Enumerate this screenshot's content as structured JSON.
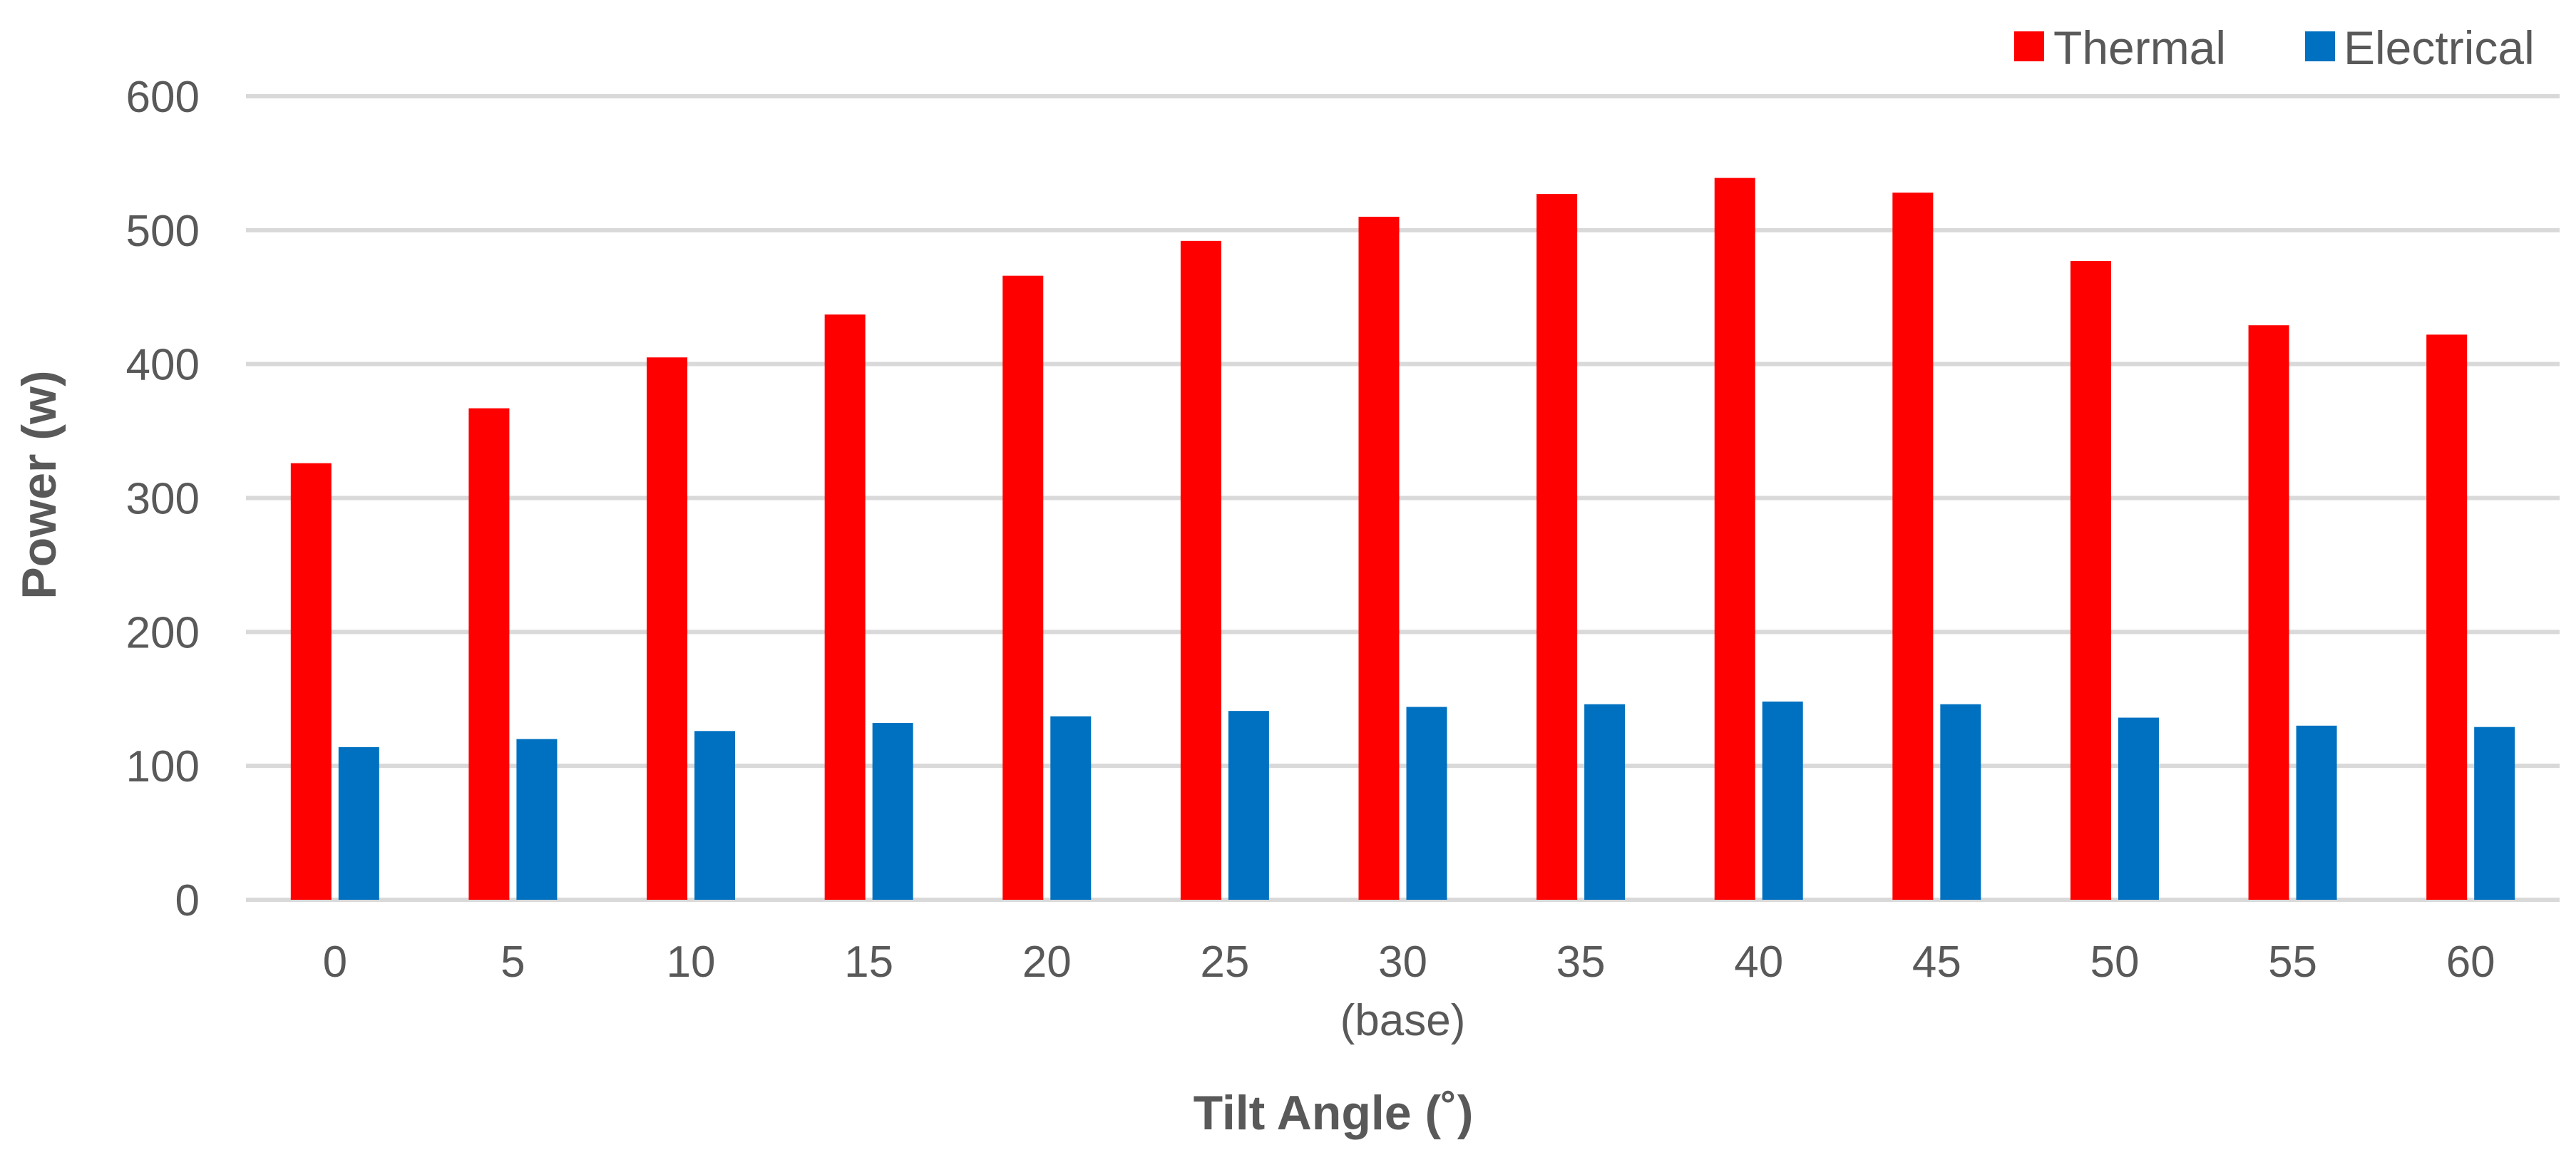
{
  "chart_data": {
    "type": "bar",
    "categories": [
      "0",
      "5",
      "10",
      "15",
      "20",
      "25",
      "30\n(base)",
      "35",
      "40",
      "45",
      "50",
      "55",
      "60"
    ],
    "series": [
      {
        "name": "Thermal",
        "color": "#ff0000",
        "values": [
          326,
          367,
          405,
          437,
          466,
          492,
          510,
          527,
          539,
          528,
          477,
          429,
          422
        ]
      },
      {
        "name": "Electrical",
        "color": "#0070c0",
        "values": [
          114,
          120,
          126,
          132,
          137,
          141,
          144,
          146,
          148,
          146,
          136,
          130,
          129
        ]
      }
    ],
    "xlabel": "Tilt Angle (˚)",
    "ylabel": "Power (w)",
    "ylim": [
      0,
      600
    ],
    "yticks": [
      "0",
      "100",
      "200",
      "300",
      "400",
      "500",
      "600"
    ],
    "grid": true,
    "legend_position": "top-right"
  }
}
